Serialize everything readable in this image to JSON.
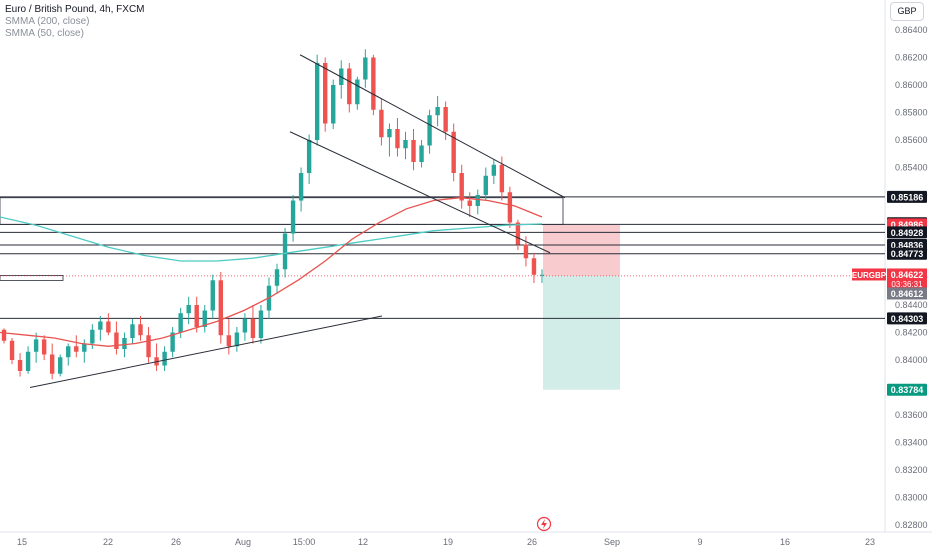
{
  "legend": {
    "title": "Euro / British Pound, 4h, FXCM",
    "line1": "SMMA (200, close)",
    "line2": "SMMA (50, close)"
  },
  "currency_button": "GBP",
  "colors": {
    "up": "#26a69a",
    "down": "#ef5350",
    "smma200": "#4ecbc4",
    "smma50": "#e8534f",
    "price_label": "#f23645",
    "target_label": "#089981",
    "level_label": "#131722",
    "stop_zone": "#f7c5c9",
    "target_zone": "#cdebe5"
  },
  "chart_data": {
    "type": "candlestick",
    "symbol": "EURGBP",
    "yaxis": {
      "range": [
        0.8273,
        0.8648
      ],
      "ticks": [
        "0.86400",
        "0.86200",
        "0.86000",
        "0.85800",
        "0.85600",
        "0.85400",
        "0.85200",
        "0.85000",
        "0.84800",
        "0.84600",
        "0.84400",
        "0.84200",
        "0.84000",
        "0.83800",
        "0.83600",
        "0.83400",
        "0.83200",
        "0.83000",
        "0.82800"
      ]
    },
    "xaxis": {
      "tick_labels": [
        "15",
        "22",
        "26",
        "Aug",
        "15:00",
        "12",
        "19",
        "26",
        "Sep",
        "9",
        "16",
        "23"
      ]
    },
    "horizontal_levels": [
      "0.85186",
      "0.84995",
      "0.84986",
      "0.84928",
      "0.84836",
      "0.84773",
      "0.84303"
    ],
    "price_labels": [
      {
        "text": "EURGBP",
        "kind": "symbol"
      },
      {
        "text": "0.84622",
        "kind": "current"
      },
      {
        "text": "03:36:31",
        "kind": "countdown"
      },
      {
        "text": "0.84612",
        "kind": "bid"
      },
      {
        "text": "0.83784",
        "kind": "target"
      }
    ],
    "position": {
      "entry": 0.84612,
      "stop": 0.84986,
      "target": 0.83784
    },
    "trendlines": [
      {
        "from": [
          "Jul 16",
          0.838
        ],
        "to": [
          "Aug 11",
          0.8432
        ]
      },
      {
        "from": [
          "Aug 5",
          0.8622
        ],
        "to": [
          "Aug 29",
          0.8518
        ]
      },
      {
        "from": [
          "Aug 3",
          0.8566
        ],
        "to": [
          "Aug 26",
          0.8478
        ]
      }
    ],
    "candles_ohlc_approx": [
      [
        0.8422,
        0.8423,
        0.8412,
        0.8414
      ],
      [
        0.8414,
        0.8416,
        0.8397,
        0.84
      ],
      [
        0.84,
        0.8405,
        0.8388,
        0.8392
      ],
      [
        0.8392,
        0.841,
        0.839,
        0.8406
      ],
      [
        0.8406,
        0.842,
        0.8398,
        0.8415
      ],
      [
        0.8415,
        0.8418,
        0.84,
        0.8404
      ],
      [
        0.8404,
        0.8412,
        0.8386,
        0.839
      ],
      [
        0.839,
        0.8404,
        0.8388,
        0.8402
      ],
      [
        0.8402,
        0.8412,
        0.8396,
        0.841
      ],
      [
        0.841,
        0.8418,
        0.8402,
        0.8406
      ],
      [
        0.8406,
        0.8415,
        0.8398,
        0.8412
      ],
      [
        0.8412,
        0.8426,
        0.8408,
        0.8422
      ],
      [
        0.8422,
        0.8432,
        0.8414,
        0.8428
      ],
      [
        0.8428,
        0.8434,
        0.8418,
        0.842
      ],
      [
        0.842,
        0.8428,
        0.8404,
        0.8408
      ],
      [
        0.8408,
        0.842,
        0.8402,
        0.8416
      ],
      [
        0.8416,
        0.843,
        0.8412,
        0.8426
      ],
      [
        0.8426,
        0.8432,
        0.8414,
        0.8418
      ],
      [
        0.8418,
        0.8424,
        0.8398,
        0.8402
      ],
      [
        0.8402,
        0.8412,
        0.8392,
        0.8396
      ],
      [
        0.8396,
        0.841,
        0.8392,
        0.8406
      ],
      [
        0.8406,
        0.8424,
        0.8402,
        0.842
      ],
      [
        0.842,
        0.8438,
        0.8416,
        0.8434
      ],
      [
        0.8434,
        0.8446,
        0.8426,
        0.844
      ],
      [
        0.844,
        0.8446,
        0.842,
        0.8424
      ],
      [
        0.8424,
        0.844,
        0.842,
        0.8436
      ],
      [
        0.8436,
        0.8462,
        0.843,
        0.8458
      ],
      [
        0.8458,
        0.8464,
        0.8412,
        0.8418
      ],
      [
        0.8418,
        0.843,
        0.8404,
        0.841
      ],
      [
        0.841,
        0.8424,
        0.8406,
        0.842
      ],
      [
        0.842,
        0.8434,
        0.8414,
        0.843
      ],
      [
        0.843,
        0.844,
        0.8412,
        0.8416
      ],
      [
        0.8416,
        0.844,
        0.8412,
        0.8436
      ],
      [
        0.8436,
        0.846,
        0.843,
        0.8454
      ],
      [
        0.8454,
        0.847,
        0.8448,
        0.8466
      ],
      [
        0.8466,
        0.8496,
        0.846,
        0.8492
      ],
      [
        0.8492,
        0.852,
        0.8486,
        0.8516
      ],
      [
        0.8516,
        0.854,
        0.8508,
        0.8536
      ],
      [
        0.8536,
        0.8564,
        0.8528,
        0.856
      ],
      [
        0.856,
        0.8622,
        0.8556,
        0.8616
      ],
      [
        0.8616,
        0.862,
        0.8566,
        0.8572
      ],
      [
        0.8572,
        0.8604,
        0.8568,
        0.86
      ],
      [
        0.86,
        0.8618,
        0.859,
        0.8612
      ],
      [
        0.8612,
        0.8616,
        0.858,
        0.8586
      ],
      [
        0.8586,
        0.8606,
        0.8582,
        0.8604
      ],
      [
        0.8604,
        0.8626,
        0.8598,
        0.862
      ],
      [
        0.862,
        0.8622,
        0.8578,
        0.8582
      ],
      [
        0.8582,
        0.859,
        0.8556,
        0.8562
      ],
      [
        0.8562,
        0.8572,
        0.8548,
        0.8568
      ],
      [
        0.8568,
        0.8576,
        0.8548,
        0.8554
      ],
      [
        0.8554,
        0.8566,
        0.8546,
        0.856
      ],
      [
        0.856,
        0.8568,
        0.8538,
        0.8544
      ],
      [
        0.8544,
        0.856,
        0.854,
        0.8556
      ],
      [
        0.8556,
        0.8582,
        0.855,
        0.8578
      ],
      [
        0.8578,
        0.8592,
        0.857,
        0.8584
      ],
      [
        0.8584,
        0.8588,
        0.856,
        0.8566
      ],
      [
        0.8566,
        0.8572,
        0.853,
        0.8536
      ],
      [
        0.8536,
        0.8542,
        0.851,
        0.8516
      ],
      [
        0.8516,
        0.8522,
        0.8504,
        0.8512
      ],
      [
        0.8512,
        0.8524,
        0.8506,
        0.852
      ],
      [
        0.852,
        0.854,
        0.8516,
        0.8534
      ],
      [
        0.8534,
        0.8546,
        0.8528,
        0.8542
      ],
      [
        0.8542,
        0.8548,
        0.8516,
        0.8522
      ],
      [
        0.8522,
        0.8526,
        0.8496,
        0.85
      ],
      [
        0.85,
        0.8502,
        0.848,
        0.8484
      ],
      [
        0.8484,
        0.849,
        0.8468,
        0.8474
      ],
      [
        0.8474,
        0.8478,
        0.8456,
        0.8462
      ],
      [
        0.8462,
        0.8466,
        0.8456,
        0.8462
      ]
    ],
    "smma50_approx": [
      0.842,
      0.8418,
      0.8416,
      0.8412,
      0.841,
      0.8412,
      0.8416,
      0.8422,
      0.8428,
      0.8436,
      0.8446,
      0.8458,
      0.8472,
      0.8488,
      0.85,
      0.851,
      0.8516,
      0.8518,
      0.8516,
      0.8512,
      0.8504
    ],
    "smma200_approx": [
      0.8504,
      0.8498,
      0.849,
      0.8482,
      0.8476,
      0.8472,
      0.8472,
      0.8474,
      0.8478,
      0.8482,
      0.8486,
      0.849,
      0.8494,
      0.8496,
      0.8498,
      0.8499
    ]
  }
}
